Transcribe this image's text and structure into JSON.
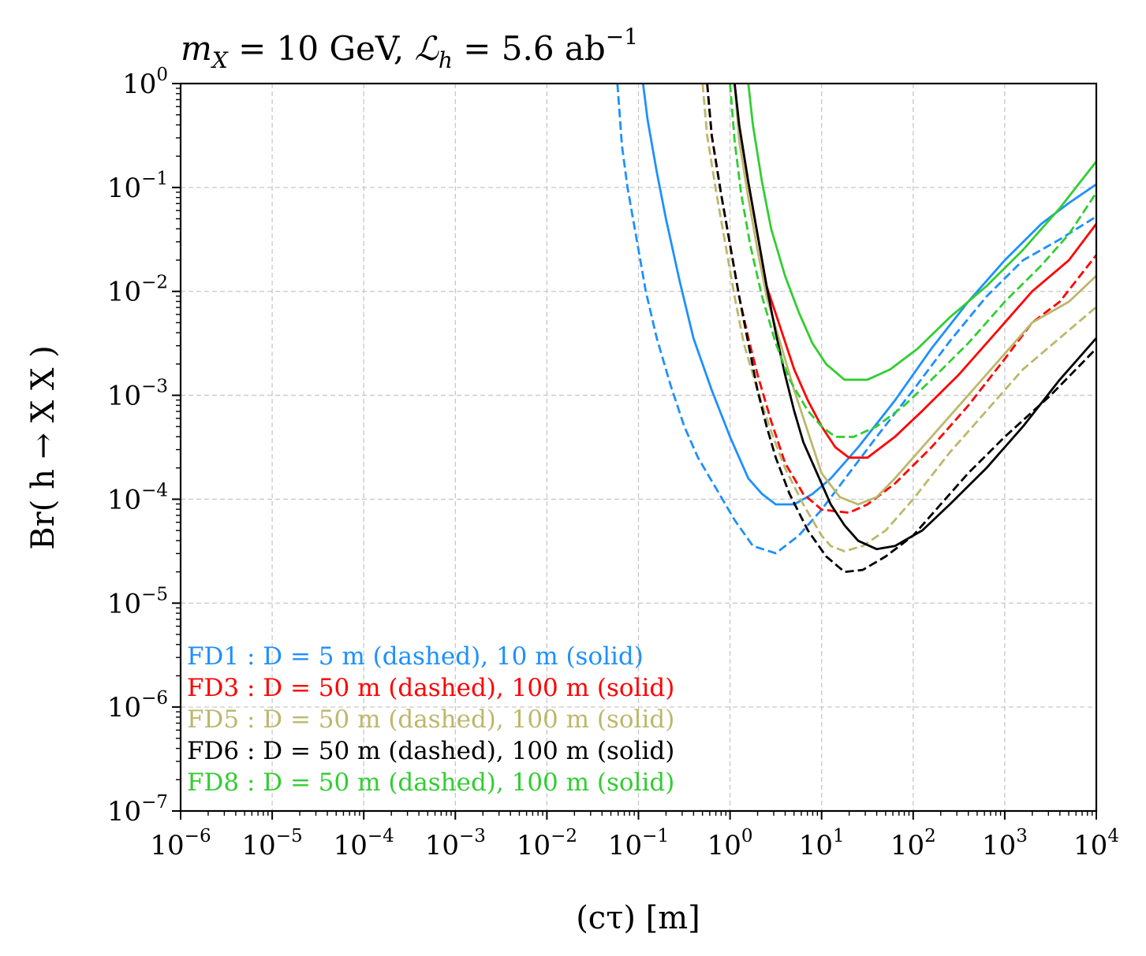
{
  "chart_data": {
    "type": "line",
    "title_parts": {
      "m": "m",
      "m_sub": "X",
      "eq1": " = 10 GeV, ",
      "L": "ℒ",
      "L_sub": "h",
      "eq2": " = 5.6 ab",
      "exp": "−1"
    },
    "xlabel": "(cτ) [m]",
    "ylabel": "Br( h → X X )",
    "xscale": "log",
    "yscale": "log",
    "xlim": [
      1e-06,
      10000.0
    ],
    "ylim": [
      1e-07,
      1.0
    ],
    "grid": true,
    "x_ticks": [
      {
        "base": "10",
        "exp": "−6",
        "value": 1e-06
      },
      {
        "base": "10",
        "exp": "−5",
        "value": 1e-05
      },
      {
        "base": "10",
        "exp": "−4",
        "value": 0.0001
      },
      {
        "base": "10",
        "exp": "−3",
        "value": 0.001
      },
      {
        "base": "10",
        "exp": "−2",
        "value": 0.01
      },
      {
        "base": "10",
        "exp": "−1",
        "value": 0.1
      },
      {
        "base": "10",
        "exp": "0",
        "value": 1.0
      },
      {
        "base": "10",
        "exp": "1",
        "value": 10.0
      },
      {
        "base": "10",
        "exp": "2",
        "value": 100.0
      },
      {
        "base": "10",
        "exp": "3",
        "value": 1000.0
      },
      {
        "base": "10",
        "exp": "4",
        "value": 10000.0
      }
    ],
    "y_ticks": [
      {
        "base": "10",
        "exp": "−7",
        "value": 1e-07
      },
      {
        "base": "10",
        "exp": "−6",
        "value": 1e-06
      },
      {
        "base": "10",
        "exp": "−5",
        "value": 1e-05
      },
      {
        "base": "10",
        "exp": "−4",
        "value": 0.0001
      },
      {
        "base": "10",
        "exp": "−3",
        "value": 0.001
      },
      {
        "base": "10",
        "exp": "−2",
        "value": 0.01
      },
      {
        "base": "10",
        "exp": "−1",
        "value": 0.1
      },
      {
        "base": "10",
        "exp": "0",
        "value": 1.0
      }
    ],
    "legend": [
      {
        "text": "FD1 : D =   5 m (dashed),  10 m (solid)",
        "color": "#1e90ff"
      },
      {
        "text": "FD3 : D = 50 m (dashed), 100 m (solid)",
        "color": "#ff0000"
      },
      {
        "text": "FD5 : D = 50 m (dashed), 100 m (solid)",
        "color": "#bdb76b"
      },
      {
        "text": "FD6 : D = 50 m (dashed), 100 m (solid)",
        "color": "#000000"
      },
      {
        "text": "FD8 : D = 50 m (dashed), 100 m (solid)",
        "color": "#32cd32"
      }
    ],
    "series": [
      {
        "name": "FD1 D=5 m",
        "color": "#1e90ff",
        "dashed": true,
        "points": [
          [
            -1.23,
            0
          ],
          [
            -1.18,
            -0.6
          ],
          [
            -1.12,
            -1
          ],
          [
            -1.04,
            -1.4
          ],
          [
            -0.92,
            -2
          ],
          [
            -0.8,
            -2.45
          ],
          [
            -0.65,
            -2.9
          ],
          [
            -0.5,
            -3.3
          ],
          [
            -0.35,
            -3.6
          ],
          [
            -0.15,
            -3.9
          ],
          [
            0.05,
            -4.2
          ],
          [
            0.25,
            -4.45
          ],
          [
            0.5,
            -4.52
          ],
          [
            0.75,
            -4.35
          ],
          [
            1,
            -4.1
          ],
          [
            1.3,
            -3.75
          ],
          [
            1.6,
            -3.4
          ],
          [
            2,
            -2.95
          ],
          [
            2.4,
            -2.48
          ],
          [
            2.8,
            -2.05
          ],
          [
            3.2,
            -1.7
          ],
          [
            3.6,
            -1.5
          ],
          [
            4,
            -1.28
          ]
        ]
      },
      {
        "name": "FD1 D=10 m",
        "color": "#1e90ff",
        "dashed": false,
        "points": [
          [
            -0.95,
            0
          ],
          [
            -0.9,
            -0.35
          ],
          [
            -0.8,
            -0.85
          ],
          [
            -0.7,
            -1.3
          ],
          [
            -0.55,
            -1.9
          ],
          [
            -0.4,
            -2.45
          ],
          [
            -0.2,
            -2.95
          ],
          [
            0,
            -3.4
          ],
          [
            0.2,
            -3.8
          ],
          [
            0.35,
            -3.95
          ],
          [
            0.5,
            -4.05
          ],
          [
            0.7,
            -4.05
          ],
          [
            0.9,
            -3.95
          ],
          [
            1.1,
            -3.8
          ],
          [
            1.4,
            -3.5
          ],
          [
            1.8,
            -3.05
          ],
          [
            2.2,
            -2.55
          ],
          [
            2.6,
            -2.1
          ],
          [
            3,
            -1.7
          ],
          [
            3.4,
            -1.35
          ],
          [
            3.7,
            -1.15
          ],
          [
            4,
            -0.97
          ]
        ]
      },
      {
        "name": "FD3 D=50 m",
        "color": "#ff0000",
        "dashed": true,
        "points": [
          [
            -0.25,
            0
          ],
          [
            -0.2,
            -0.5
          ],
          [
            -0.1,
            -1.05
          ],
          [
            0,
            -1.55
          ],
          [
            0.1,
            -2.05
          ],
          [
            0.2,
            -2.45
          ],
          [
            0.3,
            -2.8
          ],
          [
            0.45,
            -3.25
          ],
          [
            0.6,
            -3.65
          ],
          [
            0.8,
            -3.95
          ],
          [
            1,
            -4.1
          ],
          [
            1.3,
            -4.13
          ],
          [
            1.5,
            -4.05
          ],
          [
            1.8,
            -3.85
          ],
          [
            2.2,
            -3.5
          ],
          [
            2.6,
            -3.1
          ],
          [
            3,
            -2.65
          ],
          [
            3.3,
            -2.3
          ],
          [
            3.6,
            -2.1
          ],
          [
            4,
            -1.65
          ]
        ]
      },
      {
        "name": "FD3 D=100 m",
        "color": "#ff0000",
        "dashed": false,
        "points": [
          [
            0.05,
            0
          ],
          [
            0.1,
            -0.4
          ],
          [
            0.2,
            -0.95
          ],
          [
            0.3,
            -1.45
          ],
          [
            0.4,
            -1.95
          ],
          [
            0.55,
            -2.35
          ],
          [
            0.7,
            -2.75
          ],
          [
            0.85,
            -3.05
          ],
          [
            1,
            -3.3
          ],
          [
            1.15,
            -3.5
          ],
          [
            1.3,
            -3.6
          ],
          [
            1.5,
            -3.6
          ],
          [
            1.8,
            -3.4
          ],
          [
            2.1,
            -3.15
          ],
          [
            2.5,
            -2.8
          ],
          [
            2.9,
            -2.4
          ],
          [
            3.3,
            -2
          ],
          [
            3.7,
            -1.7
          ],
          [
            4,
            -1.35
          ]
        ]
      },
      {
        "name": "FD5 D=50 m",
        "color": "#bdb76b",
        "dashed": true,
        "points": [
          [
            -0.3,
            0
          ],
          [
            -0.25,
            -0.5
          ],
          [
            -0.15,
            -1.05
          ],
          [
            -0.05,
            -1.55
          ],
          [
            0.05,
            -2.05
          ],
          [
            0.15,
            -2.5
          ],
          [
            0.3,
            -2.95
          ],
          [
            0.45,
            -3.35
          ],
          [
            0.6,
            -3.7
          ],
          [
            0.8,
            -4.05
          ],
          [
            1,
            -4.35
          ],
          [
            1.1,
            -4.45
          ],
          [
            1.25,
            -4.5
          ],
          [
            1.45,
            -4.45
          ],
          [
            1.7,
            -4.3
          ],
          [
            2,
            -4
          ],
          [
            2.4,
            -3.55
          ],
          [
            2.8,
            -3.15
          ],
          [
            3.2,
            -2.75
          ],
          [
            3.6,
            -2.45
          ],
          [
            4,
            -2.15
          ]
        ]
      },
      {
        "name": "FD5 D=100 m",
        "color": "#bdb76b",
        "dashed": false,
        "points": [
          [
            0.05,
            0
          ],
          [
            0.1,
            -0.55
          ],
          [
            0.2,
            -1.1
          ],
          [
            0.3,
            -1.6
          ],
          [
            0.4,
            -2.05
          ],
          [
            0.55,
            -2.5
          ],
          [
            0.7,
            -2.95
          ],
          [
            0.85,
            -3.35
          ],
          [
            1,
            -3.75
          ],
          [
            1.2,
            -3.98
          ],
          [
            1.4,
            -4.05
          ],
          [
            1.6,
            -3.98
          ],
          [
            1.8,
            -3.8
          ],
          [
            2.1,
            -3.5
          ],
          [
            2.5,
            -3.1
          ],
          [
            2.9,
            -2.7
          ],
          [
            3.3,
            -2.3
          ],
          [
            3.7,
            -2.1
          ],
          [
            4,
            -1.85
          ]
        ]
      },
      {
        "name": "FD6 D=50 m",
        "color": "#000000",
        "dashed": true,
        "points": [
          [
            -0.25,
            0
          ],
          [
            -0.2,
            -0.5
          ],
          [
            -0.1,
            -1.05
          ],
          [
            0,
            -1.55
          ],
          [
            0.1,
            -2.05
          ],
          [
            0.2,
            -2.5
          ],
          [
            0.3,
            -2.95
          ],
          [
            0.4,
            -3.3
          ],
          [
            0.5,
            -3.6
          ],
          [
            0.65,
            -3.95
          ],
          [
            0.85,
            -4.3
          ],
          [
            1.05,
            -4.55
          ],
          [
            1.25,
            -4.7
          ],
          [
            1.45,
            -4.68
          ],
          [
            1.7,
            -4.55
          ],
          [
            2,
            -4.35
          ],
          [
            2.3,
            -4.05
          ],
          [
            2.6,
            -3.75
          ],
          [
            3,
            -3.4
          ],
          [
            3.5,
            -3
          ],
          [
            4,
            -2.55
          ]
        ]
      },
      {
        "name": "FD6 D=100 m",
        "color": "#000000",
        "dashed": false,
        "points": [
          [
            0.05,
            0
          ],
          [
            0.1,
            -0.4
          ],
          [
            0.2,
            -0.95
          ],
          [
            0.3,
            -1.45
          ],
          [
            0.4,
            -1.95
          ],
          [
            0.5,
            -2.4
          ],
          [
            0.6,
            -2.8
          ],
          [
            0.7,
            -3.15
          ],
          [
            0.8,
            -3.45
          ],
          [
            0.95,
            -3.75
          ],
          [
            1.1,
            -4.05
          ],
          [
            1.25,
            -4.25
          ],
          [
            1.4,
            -4.4
          ],
          [
            1.6,
            -4.48
          ],
          [
            1.8,
            -4.45
          ],
          [
            2.1,
            -4.3
          ],
          [
            2.4,
            -4.05
          ],
          [
            2.8,
            -3.7
          ],
          [
            3.2,
            -3.3
          ],
          [
            3.6,
            -2.85
          ],
          [
            4,
            -2.45
          ]
        ]
      },
      {
        "name": "FD8 D=50 m",
        "color": "#32cd32",
        "dashed": true,
        "points": [
          [
            0,
            0
          ],
          [
            0.05,
            -0.55
          ],
          [
            0.12,
            -1.05
          ],
          [
            0.22,
            -1.55
          ],
          [
            0.35,
            -2.05
          ],
          [
            0.5,
            -2.5
          ],
          [
            0.65,
            -2.85
          ],
          [
            0.85,
            -3.15
          ],
          [
            1,
            -3.3
          ],
          [
            1.15,
            -3.4
          ],
          [
            1.35,
            -3.4
          ],
          [
            1.6,
            -3.3
          ],
          [
            1.9,
            -3.1
          ],
          [
            2.2,
            -2.85
          ],
          [
            2.6,
            -2.5
          ],
          [
            3,
            -2.1
          ],
          [
            3.4,
            -1.75
          ],
          [
            3.7,
            -1.45
          ],
          [
            4,
            -1.05
          ]
        ]
      },
      {
        "name": "FD8 D=100 m",
        "color": "#32cd32",
        "dashed": false,
        "points": [
          [
            0.2,
            0
          ],
          [
            0.25,
            -0.4
          ],
          [
            0.35,
            -0.95
          ],
          [
            0.45,
            -1.4
          ],
          [
            0.6,
            -1.85
          ],
          [
            0.75,
            -2.2
          ],
          [
            0.9,
            -2.5
          ],
          [
            1.05,
            -2.7
          ],
          [
            1.25,
            -2.85
          ],
          [
            1.5,
            -2.85
          ],
          [
            1.75,
            -2.75
          ],
          [
            2.05,
            -2.55
          ],
          [
            2.4,
            -2.25
          ],
          [
            2.8,
            -1.95
          ],
          [
            3.2,
            -1.6
          ],
          [
            3.6,
            -1.2
          ],
          [
            4,
            -0.75
          ]
        ]
      }
    ]
  }
}
